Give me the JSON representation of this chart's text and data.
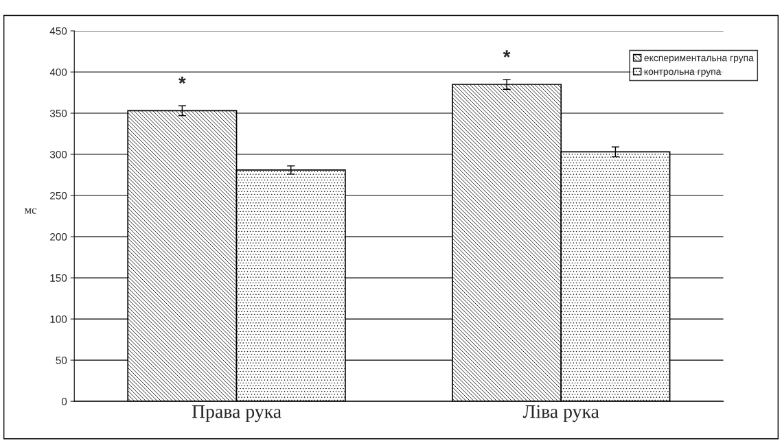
{
  "chart_data": {
    "type": "bar",
    "categories": [
      "Права рука",
      "Ліва рука"
    ],
    "series": [
      {
        "name": "експериментальна група",
        "color": "#000000",
        "values": [
          353,
          385
        ],
        "errors": [
          6,
          6
        ]
      },
      {
        "name": "контрольна група",
        "color": "#000000",
        "values": [
          281,
          303
        ],
        "errors": [
          5,
          6
        ]
      }
    ],
    "ylabel": "мс",
    "ylim": [
      0,
      450
    ],
    "yticks": [
      0,
      50,
      100,
      150,
      200,
      250,
      300,
      350,
      400,
      450
    ],
    "grid": "y",
    "legend": "top right",
    "annotations": [
      "*",
      "*"
    ]
  }
}
